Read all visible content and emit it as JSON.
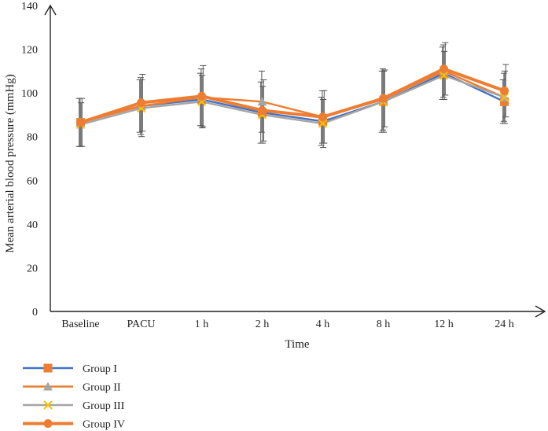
{
  "chart_data": {
    "type": "line",
    "title": "",
    "xlabel": "Time",
    "ylabel": "Mean arterial blood pressure (mmHg)",
    "ylim": [
      0,
      140
    ],
    "yticks": [
      0,
      20,
      40,
      60,
      80,
      100,
      120,
      140
    ],
    "categories": [
      "Baseline",
      "PACU",
      "1 h",
      "2 h",
      "4 h",
      "8 h",
      "12 h",
      "24 h"
    ],
    "grid": false,
    "legend_position": "bottom-left",
    "series": [
      {
        "name": "Group I",
        "color": "#4472c4",
        "marker": "square",
        "marker_color": "#ed7d31",
        "values": [
          86.5,
          94,
          97,
          91,
          87,
          96,
          109,
          96
        ],
        "error": [
          11,
          12,
          12,
          14,
          11,
          14,
          12,
          10
        ]
      },
      {
        "name": "Group II",
        "color": "#ed7d31",
        "marker": "triangle",
        "marker_color": "#a5a5a5",
        "values": [
          86.5,
          94,
          98,
          96,
          89,
          97,
          110,
          98
        ],
        "error": [
          11,
          13,
          13,
          14,
          12,
          14,
          12,
          11
        ]
      },
      {
        "name": "Group III",
        "color": "#a5a5a5",
        "marker": "x",
        "marker_color": "#ffc000",
        "values": [
          85.5,
          93,
          96,
          90,
          86,
          96,
          108,
          98
        ],
        "error": [
          10,
          13,
          12,
          13,
          11,
          14,
          11,
          12
        ]
      },
      {
        "name": "Group IV",
        "color": "#ed7d31",
        "marker": "circle",
        "marker_color": "#ed7d31",
        "values": [
          86.5,
          95.5,
          98.5,
          92,
          89,
          97.5,
          111,
          101
        ],
        "error": [
          11,
          13,
          14,
          14,
          12,
          13,
          12,
          12
        ]
      }
    ]
  }
}
